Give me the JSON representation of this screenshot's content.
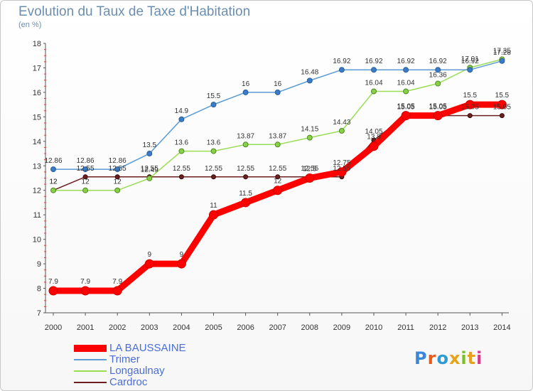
{
  "header": {
    "title": "Evolution du Taux de Taxe d'Habitation",
    "unit": "(en %)"
  },
  "logo": {
    "text": "Proxiti"
  },
  "colors": {
    "LA BAUSSAINE": "#ff0000",
    "Trimer": "#5b9bd5",
    "Longaulnay": "#99dd55",
    "Cardroc": "#6b1f1f",
    "legend_text": "#4a6ed8",
    "title_text": "#6b8fb0"
  },
  "chart_data": {
    "type": "line",
    "title": "Evolution du Taux de Taxe d'Habitation",
    "xlabel": "",
    "ylabel": "(en %)",
    "categories": [
      "2000",
      "2001",
      "2002",
      "2003",
      "2004",
      "2005",
      "2006",
      "2007",
      "2008",
      "2009",
      "2010",
      "2011",
      "2012",
      "2013",
      "2014"
    ],
    "ylim": [
      7,
      18
    ],
    "yticks": [
      "7",
      "8",
      "9",
      "10",
      "11",
      "12",
      "13",
      "14",
      "15",
      "16",
      "17",
      "18"
    ],
    "grid": false,
    "legend_position": "bottom-left",
    "series": [
      {
        "name": "LA BAUSSAINE",
        "values": [
          7.9,
          7.9,
          7.9,
          9,
          9,
          11,
          11.5,
          12,
          12.5,
          12.75,
          13.8,
          15.05,
          15.05,
          15.5,
          15.5
        ],
        "labels": [
          "7.9",
          "7.9",
          "7.9",
          "9",
          "9",
          "11",
          "11.5",
          "12",
          "12.5",
          "12.75",
          "13.8",
          "15.05",
          "15.05",
          "15.5",
          "15.5"
        ]
      },
      {
        "name": "Trimer",
        "values": [
          12.86,
          12.86,
          12.86,
          13.5,
          14.9,
          15.5,
          16,
          16,
          16.48,
          16.92,
          16.92,
          16.92,
          16.92,
          16.92,
          17.28
        ],
        "labels": [
          "12.86",
          "12.86",
          "12.86",
          "13.5",
          "14.9",
          "15.5",
          "16",
          "16",
          "16.48",
          "16.92",
          "16.92",
          "16.92",
          "16.92",
          "16.92",
          "17.28"
        ]
      },
      {
        "name": "Longaulnay",
        "values": [
          12,
          12,
          12,
          12.49,
          13.6,
          13.6,
          13.87,
          13.87,
          14.15,
          14.43,
          16.04,
          16.04,
          16.36,
          17.01,
          17.35
        ],
        "labels": [
          "12",
          "12",
          "12",
          "12.49",
          "13.6",
          "13.6",
          "13.87",
          "13.87",
          "14.15",
          "14.43",
          "16.04",
          "16.04",
          "16.36",
          "17.01",
          "17.35"
        ]
      },
      {
        "name": "Cardroc",
        "values": [
          12,
          12.55,
          12.55,
          12.55,
          12.55,
          12.55,
          12.55,
          12.55,
          12.55,
          12.55,
          14.05,
          15.05,
          15.05,
          15.05,
          15.05
        ],
        "labels": [
          "12",
          "12.55",
          "12.55",
          "12.55",
          "12.55",
          "12.55",
          "12.55",
          "12.55",
          "12.55",
          "12.55",
          "14.05",
          "15.05",
          "15.05",
          "15.05",
          "15.05"
        ]
      }
    ]
  }
}
